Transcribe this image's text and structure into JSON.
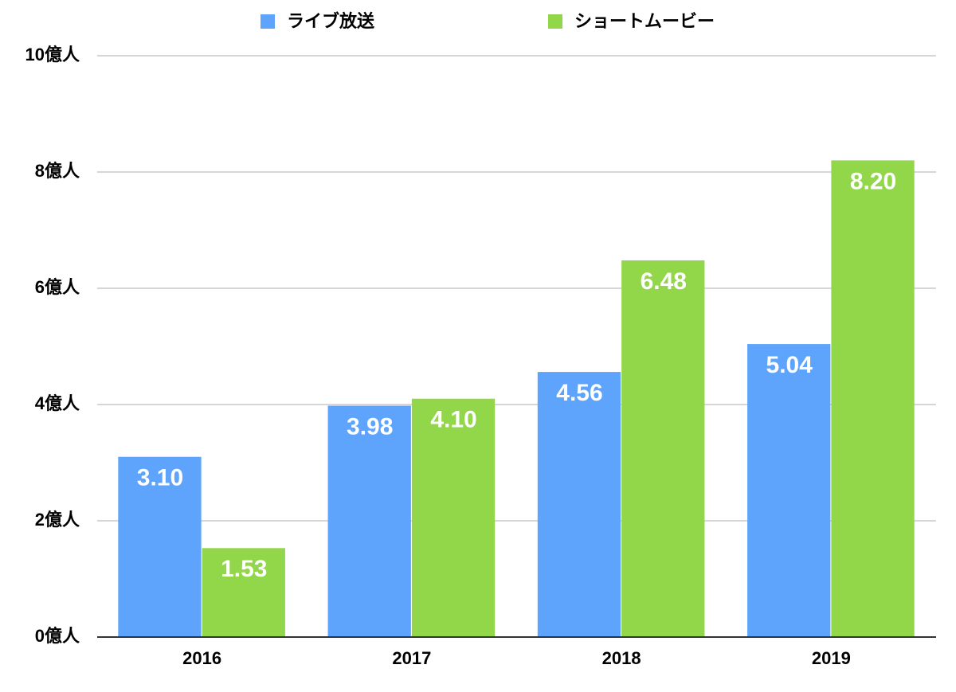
{
  "chart_data": {
    "type": "bar",
    "categories": [
      "2016",
      "2017",
      "2018",
      "2019"
    ],
    "series": [
      {
        "name": "ライブ放送",
        "color": "#5ea3fc",
        "values": [
          3.1,
          3.98,
          4.56,
          5.04
        ],
        "value_labels": [
          "3.10",
          "3.98",
          "4.56",
          "5.04"
        ]
      },
      {
        "name": "ショートムービー",
        "color": "#92d64a",
        "values": [
          1.53,
          4.1,
          6.48,
          8.2
        ],
        "value_labels": [
          "1.53",
          "4.10",
          "6.48",
          "8.20"
        ]
      }
    ],
    "ylim": [
      0,
      10
    ],
    "yticks": [
      {
        "value": 0,
        "label": "0億人"
      },
      {
        "value": 2,
        "label": "2億人"
      },
      {
        "value": 4,
        "label": "4億人"
      },
      {
        "value": 6,
        "label": "6億人"
      },
      {
        "value": 8,
        "label": "8億人"
      },
      {
        "value": 10,
        "label": "10億人"
      }
    ],
    "grid": true,
    "legend": "top"
  }
}
